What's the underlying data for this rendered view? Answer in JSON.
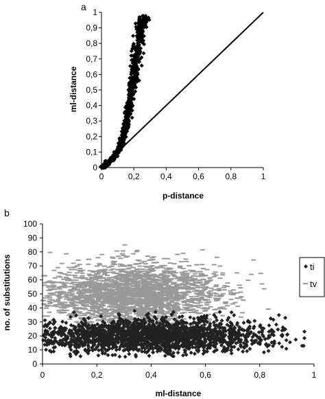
{
  "chart_data": [
    {
      "panel_label": "a",
      "type": "scatter",
      "xlabel": "p-distance",
      "ylabel": "ml-distance",
      "xlim": [
        0,
        1
      ],
      "ylim": [
        0,
        1
      ],
      "x_ticks": [
        "0",
        "0,2",
        "0,4",
        "0,6",
        "0,8",
        "1"
      ],
      "y_ticks": [
        "0",
        "0,1",
        "0,2",
        "0,3",
        "0,4",
        "0,5",
        "0,6",
        "0,7",
        "0,8",
        "0,9",
        "1"
      ],
      "grid": false,
      "series": [
        {
          "marker": "diamond",
          "color": "#000000",
          "points": [
            [
              0.0,
              0.0
            ],
            [
              0.02,
              0.01
            ],
            [
              0.04,
              0.03
            ],
            [
              0.06,
              0.05
            ],
            [
              0.08,
              0.07
            ],
            [
              0.1,
              0.1
            ],
            [
              0.12,
              0.14
            ],
            [
              0.13,
              0.18
            ],
            [
              0.14,
              0.22
            ],
            [
              0.15,
              0.27
            ],
            [
              0.16,
              0.32
            ],
            [
              0.17,
              0.38
            ],
            [
              0.18,
              0.44
            ],
            [
              0.19,
              0.51
            ],
            [
              0.2,
              0.58
            ],
            [
              0.21,
              0.66
            ],
            [
              0.22,
              0.74
            ],
            [
              0.23,
              0.82
            ],
            [
              0.24,
              0.88
            ],
            [
              0.25,
              0.93
            ],
            [
              0.26,
              0.97
            ]
          ]
        }
      ],
      "reference_line": [
        [
          0,
          0
        ],
        [
          1,
          1
        ]
      ]
    },
    {
      "panel_label": "b",
      "type": "scatter",
      "xlabel": "ml-distance",
      "ylabel": "no. of substitutions",
      "xlim": [
        0,
        1
      ],
      "ylim": [
        0,
        100
      ],
      "x_ticks": [
        "0",
        "0,2",
        "0,4",
        "0,6",
        "0,8",
        "1"
      ],
      "y_ticks": [
        "0",
        "10",
        "20",
        "30",
        "40",
        "50",
        "60",
        "70",
        "80",
        "90",
        "100"
      ],
      "grid": false,
      "legend_position": "right",
      "series": [
        {
          "name": "ti",
          "marker": "diamond",
          "color": "#222222",
          "cloud": {
            "x_center": 0.4,
            "x_spread": 0.22,
            "y_center": 20,
            "y_spread": 6,
            "x_range": [
              0.0,
              0.98
            ],
            "y_range": [
              5,
              40
            ]
          }
        },
        {
          "name": "tv",
          "marker": "dash",
          "color": "#999999",
          "cloud": {
            "x_center": 0.33,
            "x_spread": 0.16,
            "y_center": 50,
            "y_spread": 11,
            "x_range": [
              0.0,
              0.9
            ],
            "y_range": [
              10,
              88
            ]
          }
        }
      ]
    }
  ]
}
